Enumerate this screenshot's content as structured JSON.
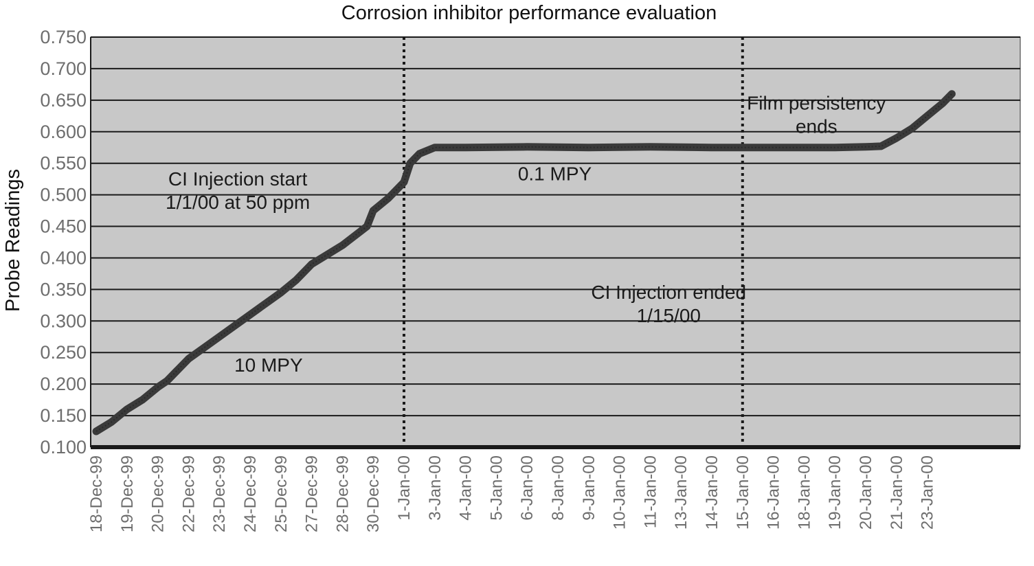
{
  "chart_data": {
    "type": "line",
    "title": "Corrosion inhibitor performance evaluation",
    "xlabel": "",
    "ylabel": "Probe Readings",
    "ylim": [
      0.1,
      0.75
    ],
    "yticks": [
      "0.100",
      "0.150",
      "0.200",
      "0.250",
      "0.300",
      "0.350",
      "0.400",
      "0.450",
      "0.500",
      "0.550",
      "0.600",
      "0.650",
      "0.700",
      "0.750"
    ],
    "categories": [
      "18-Dec-99",
      "19-Dec-99",
      "20-Dec-99",
      "22-Dec-99",
      "23-Dec-99",
      "24-Dec-99",
      "25-Dec-99",
      "27-Dec-99",
      "28-Dec-99",
      "30-Dec-99",
      "1-Jan-00",
      "3-Jan-00",
      "4-Jan-00",
      "5-Jan-00",
      "6-Jan-00",
      "8-Jan-00",
      "9-Jan-00",
      "10-Jan-00",
      "11-Jan-00",
      "13-Jan-00",
      "14-Jan-00",
      "15-Jan-00",
      "16-Jan-00",
      "18-Jan-00",
      "19-Jan-00",
      "20-Jan-00",
      "21-Jan-00",
      "23-Jan-00"
    ],
    "grid": true,
    "background": "#c8c8c8",
    "line_color": "#3a3a3a",
    "series": [
      {
        "x": [
          0,
          0.5,
          1,
          1.5,
          2,
          2.3,
          2.5,
          3,
          4,
          5,
          6,
          6.5,
          7,
          8,
          8.8,
          9,
          9.5,
          10,
          10.2,
          10.5,
          11,
          12,
          14,
          16,
          18,
          20,
          22,
          24,
          25,
          25.5,
          26,
          26.5,
          27,
          27.5,
          27.8
        ],
        "y": [
          0.125,
          0.14,
          0.16,
          0.175,
          0.195,
          0.205,
          0.215,
          0.24,
          0.275,
          0.31,
          0.345,
          0.365,
          0.39,
          0.42,
          0.45,
          0.475,
          0.495,
          0.52,
          0.55,
          0.565,
          0.575,
          0.575,
          0.576,
          0.575,
          0.576,
          0.575,
          0.575,
          0.575,
          0.576,
          0.577,
          0.59,
          0.605,
          0.625,
          0.645,
          0.66
        ]
      }
    ],
    "markers": [
      {
        "x": 10,
        "label": "1-Jan-00"
      },
      {
        "x": 21,
        "label": "15-Jan-00"
      }
    ],
    "annotations": [
      {
        "lines": [
          "CI Injection start",
          "1/1/00 at 50 ppm"
        ],
        "x": 4.6,
        "y": 0.515
      },
      {
        "lines": [
          "10 MPY"
        ],
        "x": 5.6,
        "y": 0.22
      },
      {
        "lines": [
          "0.1 MPY"
        ],
        "x": 14.9,
        "y": 0.523
      },
      {
        "lines": [
          "CI Injection ended",
          "1/15/00"
        ],
        "x": 18.6,
        "y": 0.335
      },
      {
        "lines": [
          "Film persistency",
          "ends"
        ],
        "x": 23.4,
        "y": 0.635
      }
    ]
  }
}
